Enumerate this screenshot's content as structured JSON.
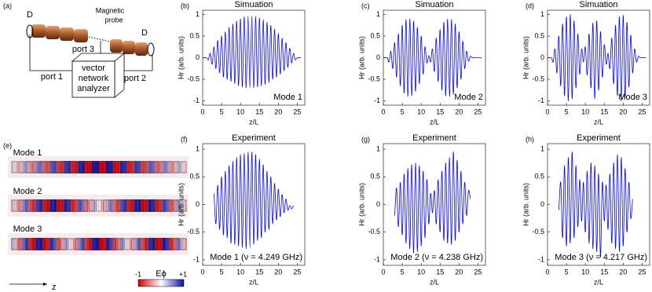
{
  "schematic": {
    "panel": "(a)",
    "labels": [
      "D",
      "Magnetic",
      "probe",
      "D",
      "port 3",
      "port 1",
      "port 2",
      "vector",
      "network",
      "analyzer"
    ]
  },
  "field_maps": {
    "panel": "(e)",
    "modes": [
      "Mode 1",
      "Mode 2",
      "Mode 3"
    ],
    "colorbar_label": "Eϕ",
    "colorbar_min": "-1",
    "colorbar_max": "+1",
    "axis_label": "z"
  },
  "chart_data": [
    {
      "type": "line",
      "panel": "(b)",
      "title": "Simuation",
      "ylabel": "Hr (arb. units)",
      "xlabel": "z/L",
      "annotation": "Mode 1",
      "color": "#0000ff",
      "xlim": [
        0,
        27
      ],
      "ylim": [
        -1.1,
        1.1
      ],
      "xticks": [
        0,
        5,
        10,
        15,
        20,
        25
      ],
      "yticks": [
        -1,
        -0.5,
        0,
        0.5,
        1
      ],
      "x": [
        0,
        1,
        1.5,
        2,
        2.5,
        3,
        3.5,
        4,
        4.5,
        5,
        5.5,
        6,
        6.5,
        7,
        7.5,
        8,
        8.5,
        9,
        9.5,
        10,
        10.5,
        11,
        11.5,
        12,
        12.5,
        13,
        13.5,
        14,
        14.5,
        15,
        15.5,
        16,
        16.5,
        17,
        17.5,
        18,
        18.5,
        19,
        19.5,
        20,
        20.5,
        21,
        21.5,
        22,
        22.5,
        23,
        23.5,
        24,
        24.5,
        25,
        26
      ],
      "values": [
        0,
        0,
        -0.05,
        0.1,
        -0.15,
        0.25,
        -0.25,
        0.4,
        -0.35,
        0.5,
        -0.45,
        0.6,
        -0.5,
        0.7,
        -0.55,
        0.78,
        -0.6,
        0.85,
        -0.65,
        0.9,
        -0.68,
        0.95,
        -0.7,
        0.97,
        -0.7,
        0.97,
        -0.7,
        0.95,
        -0.68,
        0.92,
        -0.65,
        0.88,
        -0.62,
        0.82,
        -0.57,
        0.75,
        -0.5,
        0.66,
        -0.45,
        0.56,
        -0.38,
        0.45,
        -0.3,
        0.35,
        -0.22,
        0.22,
        -0.12,
        0.1,
        -0.05,
        0,
        0
      ]
    },
    {
      "type": "line",
      "panel": "(c)",
      "title": "Simuation",
      "ylabel": "Hr (arb. units)",
      "xlabel": "z/L",
      "annotation": "Mode 2",
      "color": "#0000ff",
      "xlim": [
        0,
        27
      ],
      "ylim": [
        -1.1,
        1.1
      ],
      "xticks": [
        0,
        5,
        10,
        15,
        20,
        25
      ],
      "yticks": [
        -1,
        -0.5,
        0,
        0.5,
        1
      ],
      "x": [
        0,
        1,
        1.5,
        2,
        2.5,
        3,
        3.5,
        4,
        4.5,
        5,
        5.5,
        6,
        6.5,
        7,
        7.5,
        8,
        8.5,
        9,
        9.5,
        10,
        10.5,
        11,
        11.5,
        12,
        12.5,
        13,
        13.5,
        14,
        14.5,
        15,
        15.5,
        16,
        16.5,
        17,
        17.5,
        18,
        18.5,
        19,
        19.5,
        20,
        20.5,
        21,
        21.5,
        22,
        22.5,
        23,
        23.5,
        24,
        24.5,
        25,
        26
      ],
      "values": [
        0,
        0,
        -0.1,
        0.15,
        -0.25,
        0.35,
        -0.45,
        0.55,
        -0.65,
        0.75,
        -0.82,
        0.88,
        -0.9,
        0.9,
        -0.88,
        0.85,
        -0.78,
        0.7,
        -0.6,
        0.5,
        -0.38,
        0.25,
        -0.12,
        0.05,
        -0.1,
        0.2,
        -0.32,
        0.45,
        -0.55,
        0.65,
        -0.75,
        0.82,
        -0.88,
        0.9,
        -0.9,
        0.88,
        -0.85,
        0.78,
        -0.7,
        0.6,
        -0.5,
        0.38,
        -0.25,
        0.15,
        -0.08,
        0.03,
        0,
        0,
        0,
        0,
        0
      ]
    },
    {
      "type": "line",
      "panel": "(d)",
      "title": "Simuation",
      "ylabel": "Hr (arb. units)",
      "xlabel": "z/L",
      "annotation": "Mode 3",
      "color": "#0000ff",
      "xlim": [
        0,
        27
      ],
      "ylim": [
        -1.1,
        1.1
      ],
      "xticks": [
        0,
        5,
        10,
        15,
        20,
        25
      ],
      "yticks": [
        -1,
        -0.5,
        0,
        0.5,
        1
      ],
      "x": [
        0,
        1,
        1.5,
        2,
        2.5,
        3,
        3.5,
        4,
        4.5,
        5,
        5.5,
        6,
        6.5,
        7,
        7.5,
        8,
        8.5,
        9,
        9.5,
        10,
        10.5,
        11,
        11.5,
        12,
        12.5,
        13,
        13.5,
        14,
        14.5,
        15,
        15.5,
        16,
        16.5,
        17,
        17.5,
        18,
        18.5,
        19,
        19.5,
        20,
        20.5,
        21,
        21.5,
        22,
        22.5,
        23,
        23.5,
        24,
        24.5,
        25,
        26
      ],
      "values": [
        0,
        0,
        -0.1,
        0.2,
        -0.35,
        0.5,
        -0.65,
        0.78,
        -0.88,
        0.95,
        -1,
        1,
        -0.95,
        0.85,
        -0.7,
        0.55,
        -0.38,
        0.2,
        -0.1,
        0.25,
        -0.4,
        0.55,
        -0.7,
        0.8,
        -0.95,
        0.85,
        -0.75,
        0.6,
        -0.45,
        0.3,
        -0.15,
        0.1,
        -0.25,
        0.45,
        -0.6,
        0.75,
        -0.88,
        0.95,
        -1,
        0.98,
        -0.92,
        0.82,
        -0.68,
        0.52,
        -0.35,
        0.2,
        -0.1,
        0.03,
        0,
        0,
        0
      ]
    },
    {
      "type": "line",
      "panel": "(f)",
      "title": "Experiment",
      "ylabel": "Hr (arb. units)",
      "xlabel": "z/L",
      "annotation": "Mode 1 (ν = 4.249 GHz)",
      "color": "#0000ff",
      "xlim": [
        0,
        27
      ],
      "ylim": [
        -1.1,
        1.1
      ],
      "xticks": [
        0,
        5,
        10,
        15,
        20,
        25
      ],
      "yticks": [
        -1,
        -0.5,
        0,
        0.5,
        1
      ],
      "x": [
        3,
        3.5,
        4,
        4.5,
        5,
        5.5,
        6,
        6.5,
        7,
        7.5,
        8,
        8.5,
        9,
        9.5,
        10,
        10.5,
        11,
        11.5,
        12,
        12.5,
        13,
        13.5,
        14,
        14.5,
        15,
        15.5,
        16,
        16.5,
        17,
        17.5,
        18,
        18.5,
        19,
        19.5,
        20,
        20.5,
        21,
        21.5,
        22,
        22.5,
        23,
        23.5,
        24
      ],
      "values": [
        0.2,
        -0.35,
        0.35,
        -0.45,
        0.5,
        -0.55,
        0.6,
        -0.6,
        0.7,
        -0.7,
        0.78,
        -0.72,
        0.85,
        -0.75,
        0.9,
        -0.78,
        0.92,
        -0.8,
        0.95,
        -0.78,
        0.95,
        -0.72,
        0.9,
        -0.65,
        0.82,
        -0.6,
        0.72,
        -0.5,
        0.6,
        -0.45,
        0.5,
        -0.35,
        0.38,
        -0.28,
        0.28,
        -0.22,
        0.18,
        -0.15,
        0.1,
        -0.1,
        -0.02,
        -0.08,
        -0.02
      ]
    },
    {
      "type": "line",
      "panel": "(g)",
      "title": "Experiment",
      "ylabel": "Hr (arb. units)",
      "xlabel": "z/L",
      "annotation": "Mode 2 (ν = 4.238 GHz)",
      "color": "#0000ff",
      "xlim": [
        0,
        27
      ],
      "ylim": [
        -1.1,
        1.1
      ],
      "xticks": [
        0,
        5,
        10,
        15,
        20,
        25
      ],
      "yticks": [
        -1,
        -0.5,
        0,
        0.5,
        1
      ],
      "x": [
        3,
        3.5,
        4,
        4.5,
        5,
        5.5,
        6,
        6.5,
        7,
        7.5,
        8,
        8.5,
        9,
        9.5,
        10,
        10.5,
        11,
        11.5,
        12,
        12.5,
        13,
        13.5,
        14,
        14.5,
        15,
        15.5,
        16,
        16.5,
        17,
        17.5,
        18,
        18.5,
        19,
        19.5,
        20,
        20.5,
        21,
        21.5,
        22,
        22.5,
        23
      ],
      "values": [
        -0.2,
        0.3,
        -0.4,
        0.4,
        -0.55,
        0.55,
        -0.7,
        0.65,
        -0.8,
        0.72,
        -0.88,
        0.75,
        -0.85,
        0.7,
        -0.75,
        0.6,
        -0.6,
        0.45,
        -0.35,
        0.2,
        -0.15,
        0.25,
        -0.35,
        0.45,
        -0.5,
        0.6,
        -0.65,
        0.75,
        -0.7,
        0.85,
        -0.72,
        0.95,
        -0.65,
        0.8,
        -0.5,
        0.6,
        -0.35,
        0.4,
        -0.2,
        0.25,
        0.1
      ]
    },
    {
      "type": "line",
      "panel": "(h)",
      "title": "Experiment",
      "ylabel": "Hr (arb. units)",
      "xlabel": "z/L",
      "annotation": "Mode 3 (ν = 4.217 GHz)",
      "color": "#0000ff",
      "xlim": [
        0,
        27
      ],
      "ylim": [
        -1.1,
        1.1
      ],
      "xticks": [
        0,
        5,
        10,
        15,
        20,
        25
      ],
      "yticks": [
        -1,
        -0.5,
        0,
        0.5,
        1
      ],
      "x": [
        3,
        3.5,
        4,
        4.5,
        5,
        5.5,
        6,
        6.5,
        7,
        7.5,
        8,
        8.5,
        9,
        9.5,
        10,
        10.5,
        11,
        11.5,
        12,
        12.5,
        13,
        13.5,
        14,
        14.5,
        15,
        15.5,
        16,
        16.5,
        17,
        17.5,
        18,
        18.5,
        19,
        19.5,
        20,
        20.5,
        21,
        21.5,
        22,
        22.5
      ],
      "values": [
        -0.1,
        0.4,
        -0.6,
        0.7,
        -0.75,
        0.85,
        -0.7,
        0.95,
        -0.6,
        0.7,
        -0.4,
        0.45,
        -0.3,
        0.4,
        -0.5,
        0.6,
        -0.7,
        0.75,
        -0.8,
        0.7,
        -0.85,
        0.55,
        -0.95,
        0.4,
        -0.3,
        0.35,
        -0.45,
        0.55,
        -0.7,
        0.75,
        -0.8,
        0.9,
        -0.85,
        0.85,
        -0.75,
        0.65,
        -0.5,
        0.4,
        -0.25,
        0.1
      ]
    }
  ]
}
